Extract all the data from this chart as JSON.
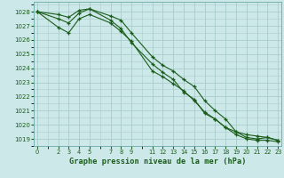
{
  "title": "Graphe pression niveau de la mer (hPa)",
  "bg_color": "#cce8e8",
  "grid_color": "#aacccc",
  "line_color": "#1a5c1a",
  "xlim": [
    -0.3,
    23.3
  ],
  "ylim": [
    1018.5,
    1028.7
  ],
  "yticks": [
    1019,
    1020,
    1021,
    1022,
    1023,
    1024,
    1025,
    1026,
    1027,
    1028
  ],
  "xtick_labels": [
    "0",
    "2",
    "3",
    "4",
    "5",
    "7",
    "8",
    "9",
    "11",
    "12",
    "13",
    "14",
    "15",
    "16",
    "17",
    "18",
    "19",
    "20",
    "21",
    "22",
    "23"
  ],
  "xtick_positions": [
    0,
    2,
    3,
    4,
    5,
    7,
    8,
    9,
    11,
    12,
    13,
    14,
    15,
    16,
    17,
    18,
    19,
    20,
    21,
    22,
    23
  ],
  "series_x": [
    [
      0,
      2,
      3,
      4,
      5,
      7,
      8,
      9,
      11,
      12,
      13,
      14,
      15,
      16,
      17,
      18,
      19,
      20,
      21,
      22,
      23
    ],
    [
      0,
      2,
      3,
      4,
      5,
      7,
      8,
      9,
      11,
      12,
      13,
      14,
      15,
      16,
      17,
      18,
      19,
      20,
      21,
      22,
      23
    ],
    [
      0,
      2,
      3,
      4,
      5,
      7,
      8,
      9,
      11,
      12,
      13,
      14,
      15,
      16,
      17,
      18,
      19,
      20,
      21,
      22,
      23
    ]
  ],
  "series_y": [
    [
      1028.0,
      1027.8,
      1027.6,
      1028.1,
      1028.2,
      1027.4,
      1026.8,
      1025.8,
      1024.3,
      1023.7,
      1023.2,
      1022.3,
      1021.8,
      1020.8,
      1020.4,
      1019.8,
      1019.5,
      1019.3,
      1019.2,
      1019.1,
      1018.9
    ],
    [
      1028.0,
      1027.5,
      1027.2,
      1027.9,
      1028.2,
      1027.7,
      1027.4,
      1026.5,
      1024.8,
      1024.2,
      1023.8,
      1023.2,
      1022.7,
      1021.7,
      1021.0,
      1020.4,
      1019.5,
      1019.1,
      1019.0,
      1019.1,
      1018.9
    ],
    [
      1028.0,
      1026.9,
      1026.5,
      1027.5,
      1027.8,
      1027.2,
      1026.6,
      1025.9,
      1023.8,
      1023.4,
      1022.9,
      1022.4,
      1021.7,
      1020.9,
      1020.4,
      1019.8,
      1019.3,
      1019.0,
      1018.9,
      1018.9,
      1018.8
    ]
  ]
}
